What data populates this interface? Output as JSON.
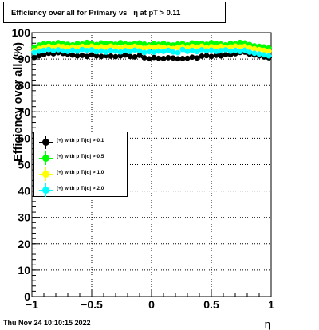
{
  "title": "Efficiency over all for Primary vs   η at pT > 0.11",
  "timestamp": "Thu Nov 24 10:10:15 2022",
  "chart_data": {
    "type": "scatter",
    "xlabel": "η",
    "ylabel": "Efficiency over all (%)",
    "xlim": [
      -1,
      1
    ],
    "ylim": [
      0,
      100
    ],
    "x_ticks": [
      "−1",
      "−0.5",
      "0",
      "0.5",
      "1"
    ],
    "x_tick_values": [
      -1,
      -0.5,
      0,
      0.5,
      1
    ],
    "y_ticks": [
      "0",
      "10",
      "20",
      "30",
      "40",
      "50",
      "60",
      "70",
      "80",
      "90",
      "100"
    ],
    "y_tick_values": [
      0,
      10,
      20,
      30,
      40,
      50,
      60,
      70,
      80,
      90,
      100
    ],
    "grid": true,
    "legend_position": "middle-left",
    "series": [
      {
        "name": "(+) with p T/|q| > 0.1",
        "color": "#000000",
        "x": [
          -0.98,
          -0.94,
          -0.9,
          -0.86,
          -0.82,
          -0.78,
          -0.74,
          -0.7,
          -0.66,
          -0.62,
          -0.58,
          -0.54,
          -0.5,
          -0.46,
          -0.42,
          -0.38,
          -0.34,
          -0.3,
          -0.26,
          -0.22,
          -0.18,
          -0.14,
          -0.1,
          -0.06,
          -0.02,
          0.02,
          0.06,
          0.1,
          0.14,
          0.18,
          0.22,
          0.26,
          0.3,
          0.34,
          0.38,
          0.42,
          0.46,
          0.5,
          0.54,
          0.58,
          0.62,
          0.66,
          0.7,
          0.74,
          0.78,
          0.82,
          0.86,
          0.9,
          0.94,
          0.98
        ],
        "y": [
          90.6,
          91.3,
          91.7,
          92.2,
          92.0,
          92.4,
          92.1,
          91.8,
          91.5,
          91.2,
          91.4,
          91.0,
          91.6,
          91.2,
          91.0,
          91.3,
          91.1,
          90.9,
          91.2,
          91.5,
          91.0,
          90.8,
          91.4,
          90.5,
          90.1,
          90.6,
          90.3,
          90.2,
          90.5,
          90.4,
          90.1,
          90.2,
          90.3,
          90.7,
          90.4,
          91.1,
          91.3,
          91.0,
          91.4,
          91.2,
          91.7,
          91.6,
          92.0,
          92.5,
          92.6,
          91.8,
          91.5,
          91.2,
          90.8,
          90.5
        ]
      },
      {
        "name": "(+) with p T/|q| > 0.5",
        "color": "#00ff00",
        "x": [
          -0.98,
          -0.94,
          -0.9,
          -0.86,
          -0.82,
          -0.78,
          -0.74,
          -0.7,
          -0.66,
          -0.62,
          -0.58,
          -0.54,
          -0.5,
          -0.46,
          -0.42,
          -0.38,
          -0.34,
          -0.3,
          -0.26,
          -0.22,
          -0.18,
          -0.14,
          -0.1,
          -0.06,
          -0.02,
          0.02,
          0.06,
          0.1,
          0.14,
          0.18,
          0.22,
          0.26,
          0.3,
          0.34,
          0.38,
          0.42,
          0.46,
          0.5,
          0.54,
          0.58,
          0.62,
          0.66,
          0.7,
          0.74,
          0.78,
          0.82,
          0.86,
          0.9,
          0.94,
          0.98
        ],
        "y": [
          94.5,
          95.3,
          95.8,
          96.0,
          95.7,
          96.2,
          96.0,
          95.6,
          95.4,
          95.9,
          95.7,
          96.3,
          95.9,
          95.5,
          96.1,
          95.8,
          96.0,
          95.6,
          96.2,
          95.8,
          95.5,
          95.9,
          96.1,
          95.7,
          95.4,
          95.8,
          95.6,
          96.0,
          95.5,
          95.3,
          95.7,
          95.9,
          95.4,
          96.1,
          95.8,
          96.0,
          95.6,
          96.2,
          95.9,
          95.7,
          95.4,
          96.0,
          95.8,
          96.3,
          96.1,
          95.5,
          95.0,
          94.8,
          94.6,
          94.2
        ]
      },
      {
        "name": "(+) with p T/|q| > 1.0",
        "color": "#ffff00",
        "x": [
          -0.98,
          -0.94,
          -0.9,
          -0.86,
          -0.82,
          -0.78,
          -0.74,
          -0.7,
          -0.66,
          -0.62,
          -0.58,
          -0.54,
          -0.5,
          -0.46,
          -0.42,
          -0.38,
          -0.34,
          -0.3,
          -0.26,
          -0.22,
          -0.18,
          -0.14,
          -0.1,
          -0.06,
          -0.02,
          0.02,
          0.06,
          0.1,
          0.14,
          0.18,
          0.22,
          0.26,
          0.3,
          0.34,
          0.38,
          0.42,
          0.46,
          0.5,
          0.54,
          0.58,
          0.62,
          0.66,
          0.7,
          0.74,
          0.78,
          0.82,
          0.86,
          0.9,
          0.94,
          0.98
        ],
        "y": [
          93.2,
          94.0,
          94.5,
          94.8,
          94.4,
          94.9,
          94.7,
          94.3,
          94.6,
          94.2,
          94.8,
          94.5,
          94.9,
          94.4,
          94.7,
          94.3,
          94.9,
          94.6,
          94.2,
          94.7,
          94.4,
          94.8,
          94.5,
          94.1,
          94.6,
          94.3,
          94.7,
          94.5,
          94.2,
          94.0,
          94.4,
          94.7,
          94.2,
          94.8,
          94.5,
          94.9,
          94.3,
          94.7,
          94.5,
          94.8,
          94.4,
          94.6,
          94.9,
          94.6,
          94.8,
          94.2,
          93.9,
          93.6,
          93.3,
          93.0
        ]
      },
      {
        "name": "(+) with p T/|q| > 2.0",
        "color": "#00ffff",
        "x": [
          -0.98,
          -0.94,
          -0.9,
          -0.86,
          -0.82,
          -0.78,
          -0.74,
          -0.7,
          -0.66,
          -0.62,
          -0.58,
          -0.54,
          -0.5,
          -0.46,
          -0.42,
          -0.38,
          -0.34,
          -0.3,
          -0.26,
          -0.22,
          -0.18,
          -0.14,
          -0.1,
          -0.06,
          -0.02,
          0.02,
          0.06,
          0.1,
          0.14,
          0.18,
          0.22,
          0.26,
          0.3,
          0.34,
          0.38,
          0.42,
          0.46,
          0.5,
          0.54,
          0.58,
          0.62,
          0.66,
          0.7,
          0.74,
          0.78,
          0.82,
          0.86,
          0.9,
          0.94,
          0.98
        ],
        "y": [
          92.5,
          93.0,
          93.3,
          93.6,
          93.2,
          93.5,
          93.1,
          92.9,
          93.4,
          93.0,
          93.6,
          93.2,
          93.5,
          92.8,
          93.1,
          92.6,
          93.3,
          93.0,
          92.7,
          93.2,
          92.9,
          93.4,
          93.1,
          92.5,
          92.8,
          92.6,
          93.0,
          92.9,
          93.3,
          92.7,
          92.4,
          93.6,
          92.9,
          93.3,
          92.8,
          93.5,
          93.1,
          93.4,
          92.9,
          93.2,
          93.5,
          93.0,
          93.3,
          92.9,
          93.4,
          92.6,
          92.2,
          91.9,
          91.6,
          91.2
        ]
      }
    ]
  }
}
